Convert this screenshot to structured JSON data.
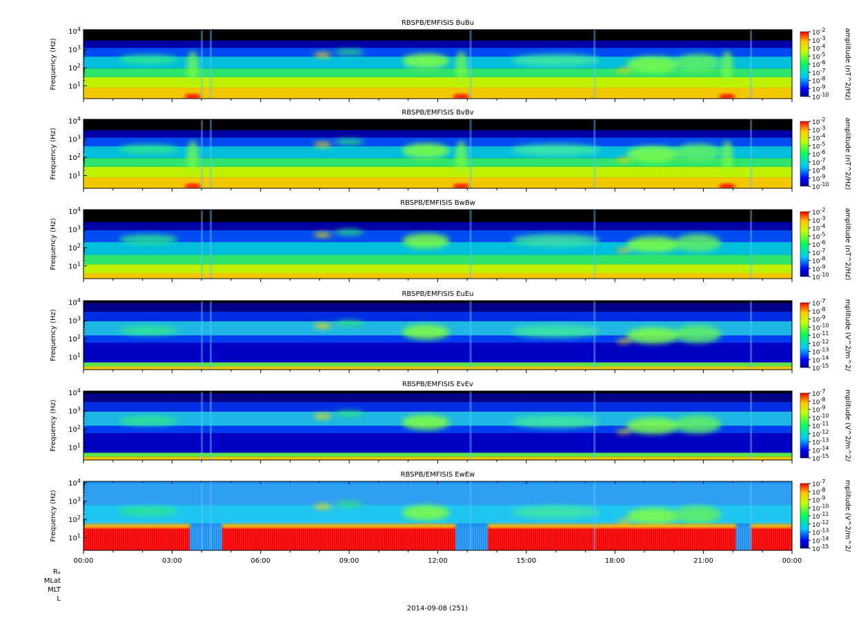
{
  "figure": {
    "date_label": "2014-09-08 (251)",
    "ephemeris_labels": [
      "Rₑ",
      "MLat",
      "MLT",
      "L"
    ],
    "time_ticks": [
      "00:00",
      "03:00",
      "06:00",
      "09:00",
      "12:00",
      "15:00",
      "18:00",
      "21:00",
      "00:00"
    ]
  },
  "chart_data": [
    {
      "type": "heatmap",
      "title": "RBSPB/EMFISIS  BuBu",
      "ylabel": "Frequency (Hz)",
      "yscale": "log",
      "y_ticks": [
        "10^1",
        "10^2",
        "10^3",
        "10^4"
      ],
      "ylim": [
        2,
        12000
      ],
      "xlim": [
        "00:00",
        "24:00"
      ],
      "colorbar": {
        "label": "amplitude (nT^2/Hz)",
        "min_exp": -10,
        "max_exp": -2,
        "ticks": [
          "10^-2",
          "10^-3",
          "10^-4",
          "10^-5",
          "10^-6",
          "10^-7",
          "10^-8",
          "10^-9",
          "10^-10"
        ]
      }
    },
    {
      "type": "heatmap",
      "title": "RBSPB/EMFISIS  BvBv",
      "ylabel": "Frequency (Hz)",
      "yscale": "log",
      "y_ticks": [
        "10^1",
        "10^2",
        "10^3",
        "10^4"
      ],
      "ylim": [
        2,
        12000
      ],
      "xlim": [
        "00:00",
        "24:00"
      ],
      "colorbar": {
        "label": "amplitude (nT^2/Hz)",
        "min_exp": -10,
        "max_exp": -2,
        "ticks": [
          "10^-2",
          "10^-3",
          "10^-4",
          "10^-5",
          "10^-6",
          "10^-7",
          "10^-8",
          "10^-9",
          "10^-10"
        ]
      }
    },
    {
      "type": "heatmap",
      "title": "RBSPB/EMFISIS  BwBw",
      "ylabel": "Frequency (Hz)",
      "yscale": "log",
      "y_ticks": [
        "10^1",
        "10^2",
        "10^3",
        "10^4"
      ],
      "ylim": [
        2,
        12000
      ],
      "xlim": [
        "00:00",
        "24:00"
      ],
      "colorbar": {
        "label": "amplitude (nT^2/Hz)",
        "min_exp": -10,
        "max_exp": -2,
        "ticks": [
          "10^-2",
          "10^-3",
          "10^-4",
          "10^-5",
          "10^-6",
          "10^-7",
          "10^-8",
          "10^-9",
          "10^-10"
        ]
      }
    },
    {
      "type": "heatmap",
      "title": "RBSPB/EMFISIS  EuEu",
      "ylabel": "Frequency (Hz)",
      "yscale": "log",
      "y_ticks": [
        "10^1",
        "10^2",
        "10^3",
        "10^4"
      ],
      "ylim": [
        2,
        12000
      ],
      "xlim": [
        "00:00",
        "24:00"
      ],
      "colorbar": {
        "label": "mplitude (V^2/m^2/",
        "min_exp": -15,
        "max_exp": -7,
        "ticks": [
          "10^-7",
          "10^-8",
          "10^-9",
          "10^-10",
          "10^-11",
          "10^-12",
          "10^-13",
          "10^-14",
          "10^-15"
        ]
      }
    },
    {
      "type": "heatmap",
      "title": "RBSPB/EMFISIS  EvEv",
      "ylabel": "Frequency (Hz)",
      "yscale": "log",
      "y_ticks": [
        "10^1",
        "10^2",
        "10^3",
        "10^4"
      ],
      "ylim": [
        2,
        12000
      ],
      "xlim": [
        "00:00",
        "24:00"
      ],
      "colorbar": {
        "label": "mplitude (V^2/m^2/",
        "min_exp": -15,
        "max_exp": -7,
        "ticks": [
          "10^-7",
          "10^-8",
          "10^-9",
          "10^-10",
          "10^-11",
          "10^-12",
          "10^-13",
          "10^-14",
          "10^-15"
        ]
      }
    },
    {
      "type": "heatmap",
      "title": "RBSPB/EMFISIS  EwEw",
      "ylabel": "Frequency (Hz)",
      "yscale": "log",
      "y_ticks": [
        "10^1",
        "10^2",
        "10^3",
        "10^4"
      ],
      "ylim": [
        2,
        12000
      ],
      "xlim": [
        "00:00",
        "24:00"
      ],
      "colorbar": {
        "label": "mplitude (V^2/m^2/",
        "min_exp": -15,
        "max_exp": -7,
        "ticks": [
          "10^-7",
          "10^-8",
          "10^-9",
          "10^-10",
          "10^-11",
          "10^-12",
          "10^-13",
          "10^-14",
          "10^-15"
        ]
      }
    }
  ]
}
